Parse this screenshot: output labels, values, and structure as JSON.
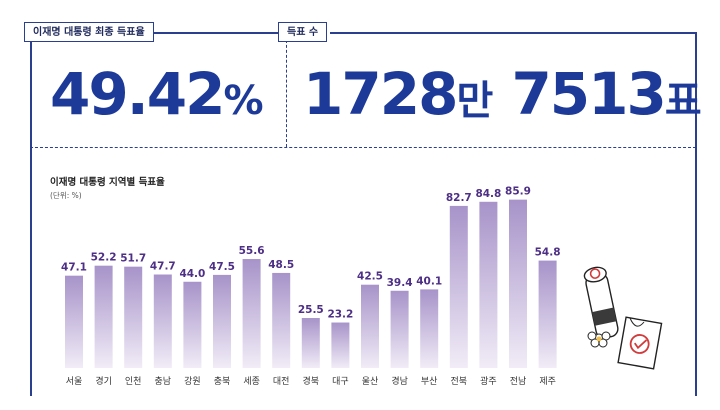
{
  "header": {
    "rate_label": "이재명 대통령 최종 득표율",
    "rate_value": "49.42",
    "rate_symbol": "%",
    "votes_label": "득표 수",
    "votes_part1": "1728",
    "votes_unit1": "만",
    "votes_part2": "7513",
    "votes_unit2": "표"
  },
  "chart_data": {
    "type": "bar",
    "title": "이재명 대통령 지역별 득표율",
    "unit_note": "(단위: %)",
    "categories": [
      "서울",
      "경기",
      "인천",
      "충남",
      "강원",
      "충북",
      "세종",
      "대전",
      "경북",
      "대구",
      "울산",
      "경남",
      "부산",
      "전북",
      "광주",
      "전남",
      "제주"
    ],
    "values": [
      47.1,
      52.2,
      51.7,
      47.7,
      44.0,
      47.5,
      55.6,
      48.5,
      25.5,
      23.2,
      42.5,
      39.4,
      40.1,
      82.7,
      84.8,
      85.9,
      54.8
    ],
    "ylim": [
      0,
      100
    ],
    "grid": false,
    "colors": {
      "bar_top": "#a793c9",
      "bar_bottom": "#f1ecf7",
      "value_label": "#4e2f86"
    }
  },
  "decoration": {
    "ballot_stamp": "stamp-icon",
    "ballot_paper": "ballot-icon"
  }
}
